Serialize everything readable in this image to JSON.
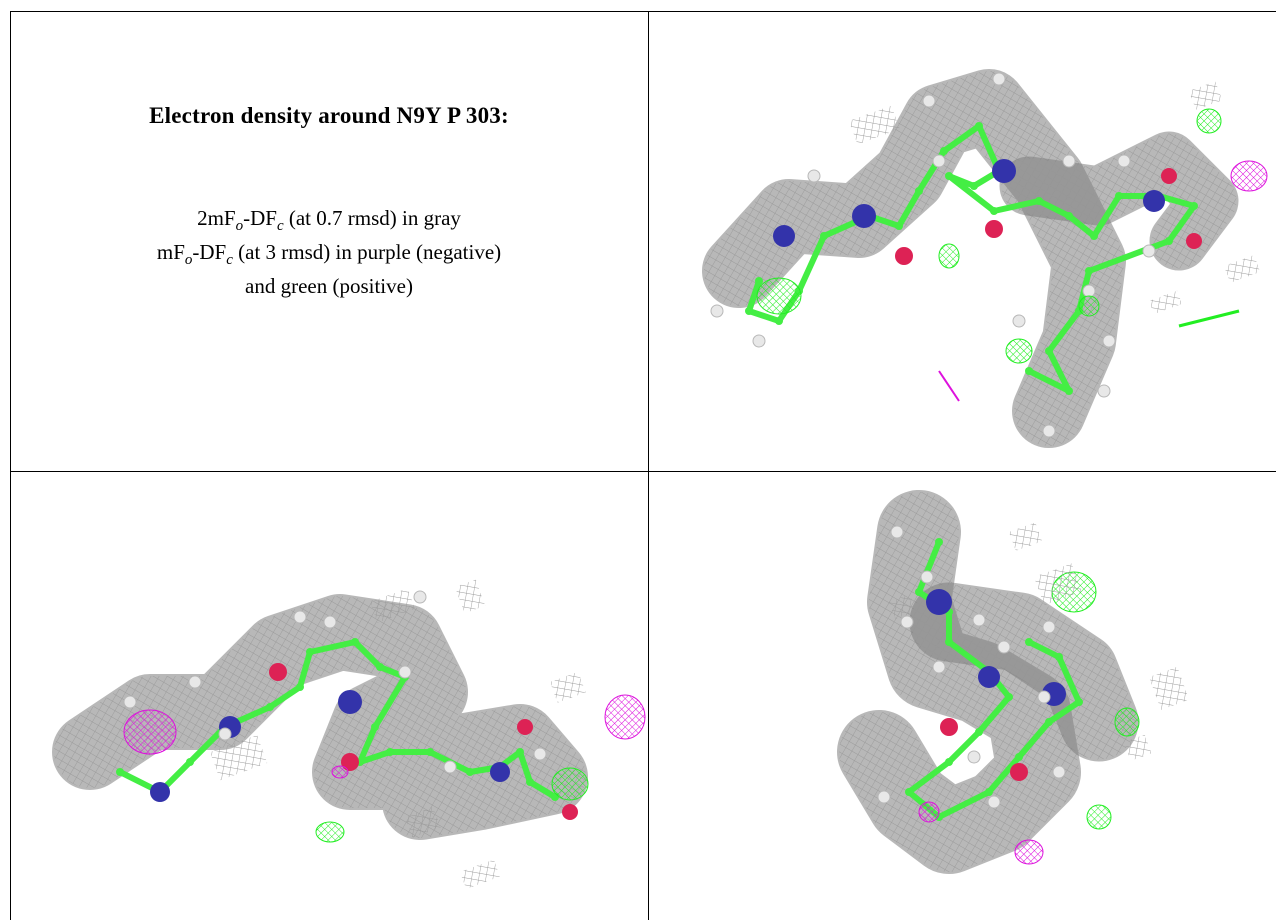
{
  "caption": {
    "title": "Electron density around N9Y P 303:",
    "line1_prefix": "2mF",
    "line1_sub1": "o",
    "line1_mid": "-DF",
    "line1_sub2": "c",
    "line1_suffix": " (at 0.7 rmsd) in gray",
    "line2_prefix": "mF",
    "line2_sub1": "o",
    "line2_mid": "-DF",
    "line2_sub2": "c",
    "line2_suffix": " (at 3 rmsd) in purple (negative)",
    "line3": "and green (positive)"
  },
  "colors": {
    "mesh_gray": "#9a9a9a",
    "difference_positive": "#22ee22",
    "difference_negative": "#dd11dd",
    "carbon": "#44ee44",
    "nitrogen": "#3333aa",
    "oxygen": "#dd2255",
    "hydrogen": "#e8e8e8"
  },
  "panels": [
    {
      "name": "view-top-right"
    },
    {
      "name": "view-bottom-left"
    },
    {
      "name": "view-bottom-right"
    }
  ]
}
